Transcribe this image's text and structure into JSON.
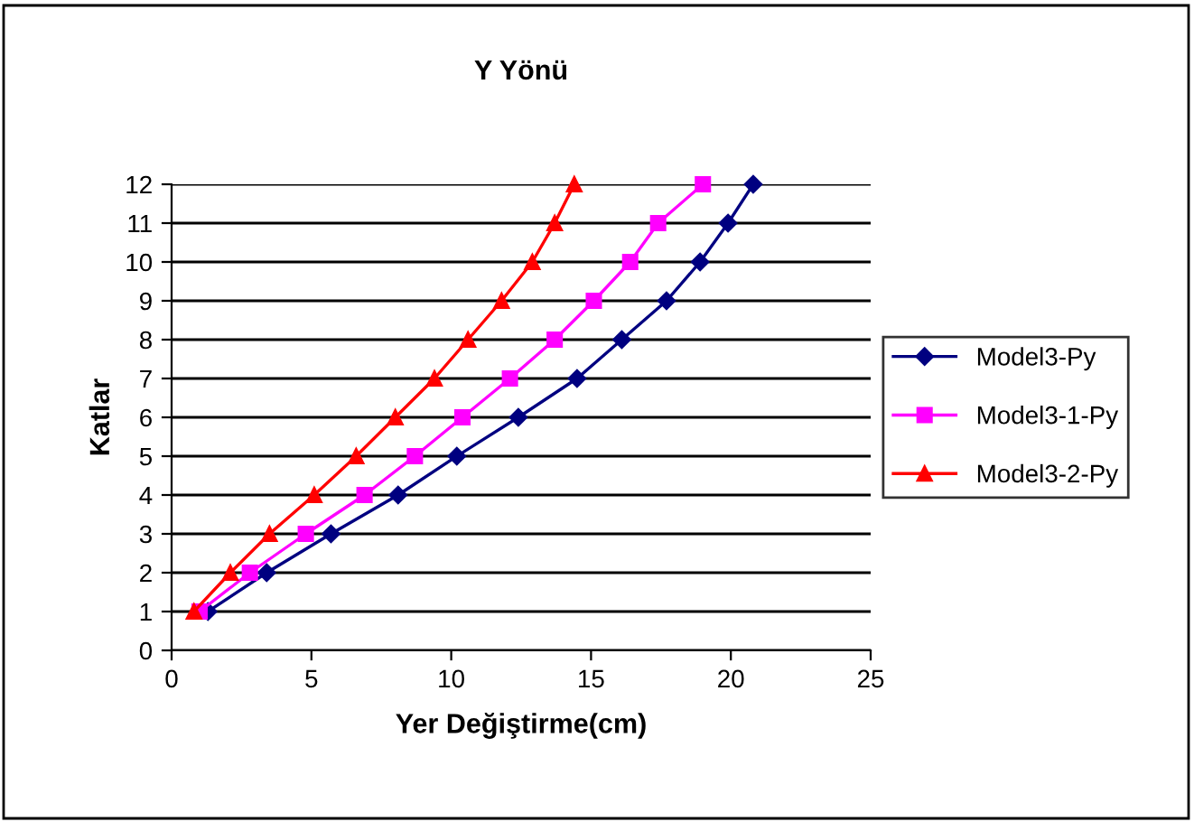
{
  "chart_data": {
    "type": "line",
    "title": "Y Yönü",
    "xlabel": "Yer Değiştirme(cm)",
    "ylabel": "Katlar",
    "xlim": [
      0,
      25
    ],
    "xticks": [
      0,
      5,
      10,
      15,
      20,
      25
    ],
    "ylim": [
      0,
      12
    ],
    "yticks": [
      0,
      1,
      2,
      3,
      4,
      5,
      6,
      7,
      8,
      9,
      10,
      11,
      12
    ],
    "grid": "y",
    "legend": "right",
    "series": [
      {
        "name": "Model3-Py",
        "color": "#000080",
        "marker": "diamond",
        "x": [
          1.3,
          3.4,
          5.7,
          8.1,
          10.2,
          12.4,
          14.5,
          16.1,
          17.7,
          18.9,
          19.9,
          20.8
        ],
        "values": [
          1,
          2,
          3,
          4,
          5,
          6,
          7,
          8,
          9,
          10,
          11,
          12
        ]
      },
      {
        "name": "Model3-1-Py",
        "color": "#ff00ff",
        "marker": "square",
        "x": [
          1.0,
          2.8,
          4.8,
          6.9,
          8.7,
          10.4,
          12.1,
          13.7,
          15.1,
          16.4,
          17.4,
          19.0
        ],
        "values": [
          1,
          2,
          3,
          4,
          5,
          6,
          7,
          8,
          9,
          10,
          11,
          12
        ]
      },
      {
        "name": "Model3-2-Py",
        "color": "#ff0000",
        "marker": "triangle",
        "x": [
          0.8,
          2.1,
          3.5,
          5.1,
          6.6,
          8.0,
          9.4,
          10.6,
          11.8,
          12.9,
          13.7,
          14.4
        ],
        "values": [
          1,
          2,
          3,
          4,
          5,
          6,
          7,
          8,
          9,
          10,
          11,
          12
        ]
      }
    ]
  }
}
